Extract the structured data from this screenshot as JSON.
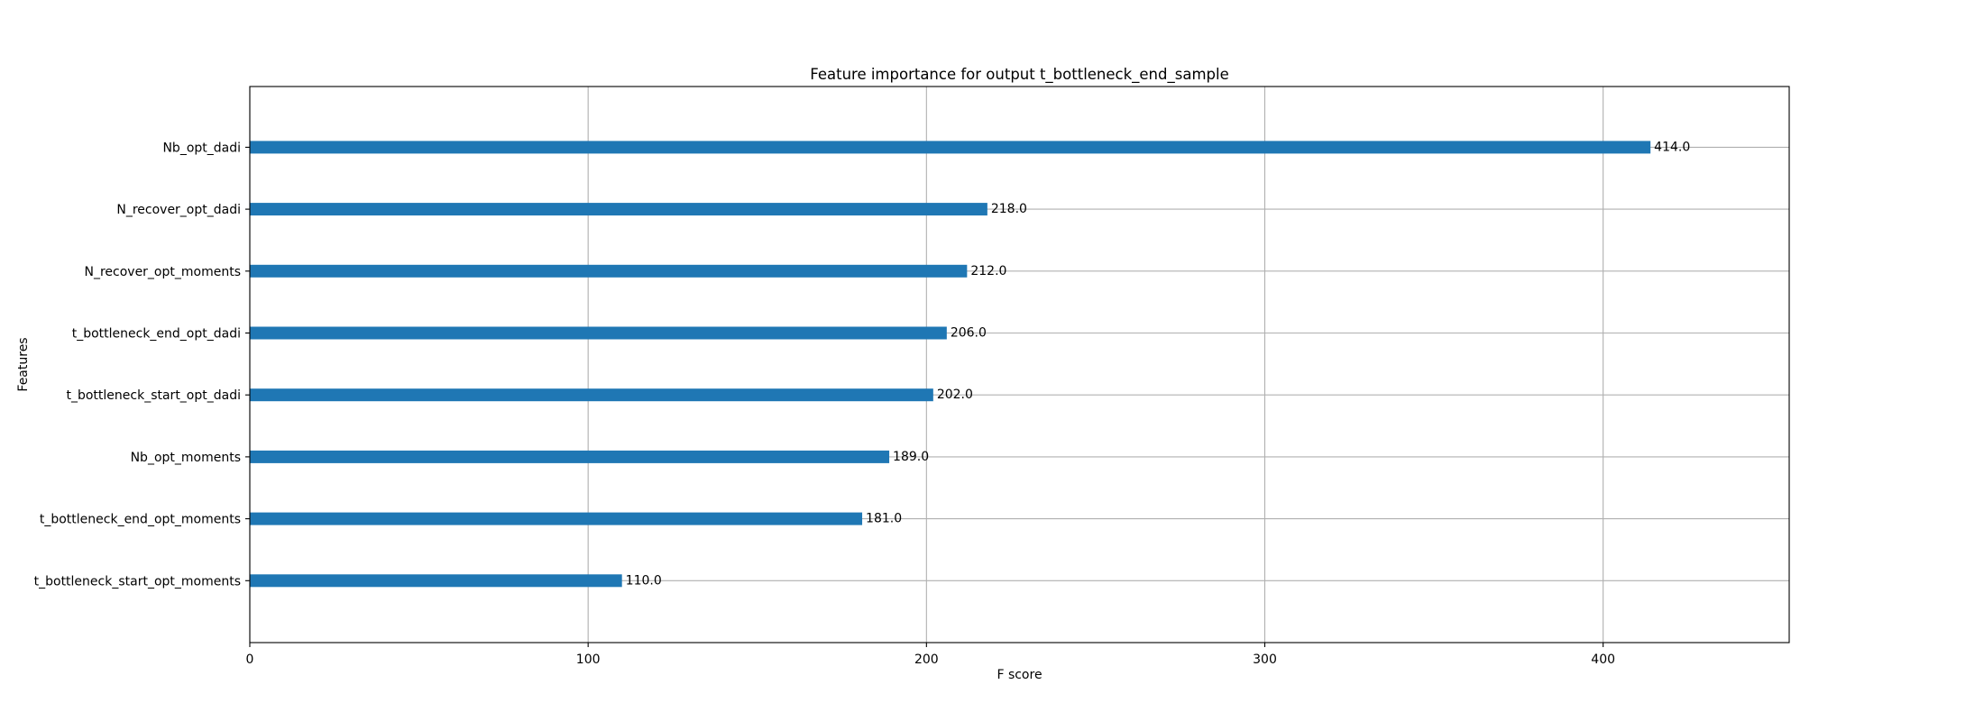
{
  "chart_data": {
    "type": "bar",
    "orientation": "horizontal",
    "title": "Feature importance for output t_bottleneck_end_sample",
    "xlabel": "F score",
    "ylabel": "Features",
    "categories": [
      "t_bottleneck_start_opt_moments",
      "t_bottleneck_end_opt_moments",
      "Nb_opt_moments",
      "t_bottleneck_start_opt_dadi",
      "t_bottleneck_end_opt_dadi",
      "N_recover_opt_moments",
      "N_recover_opt_dadi",
      "Nb_opt_dadi"
    ],
    "values": [
      110,
      181,
      189,
      202,
      206,
      212,
      218,
      414
    ],
    "value_labels": [
      "110.0",
      "181.0",
      "189.0",
      "202.0",
      "206.0",
      "212.0",
      "218.0",
      "414.0"
    ],
    "xlim": [
      0,
      455
    ],
    "xticks": [
      0,
      100,
      200,
      300,
      400
    ],
    "xtick_labels": [
      "0",
      "100",
      "200",
      "300",
      "400"
    ],
    "grid": true,
    "bar_color": "#1f77b4"
  }
}
